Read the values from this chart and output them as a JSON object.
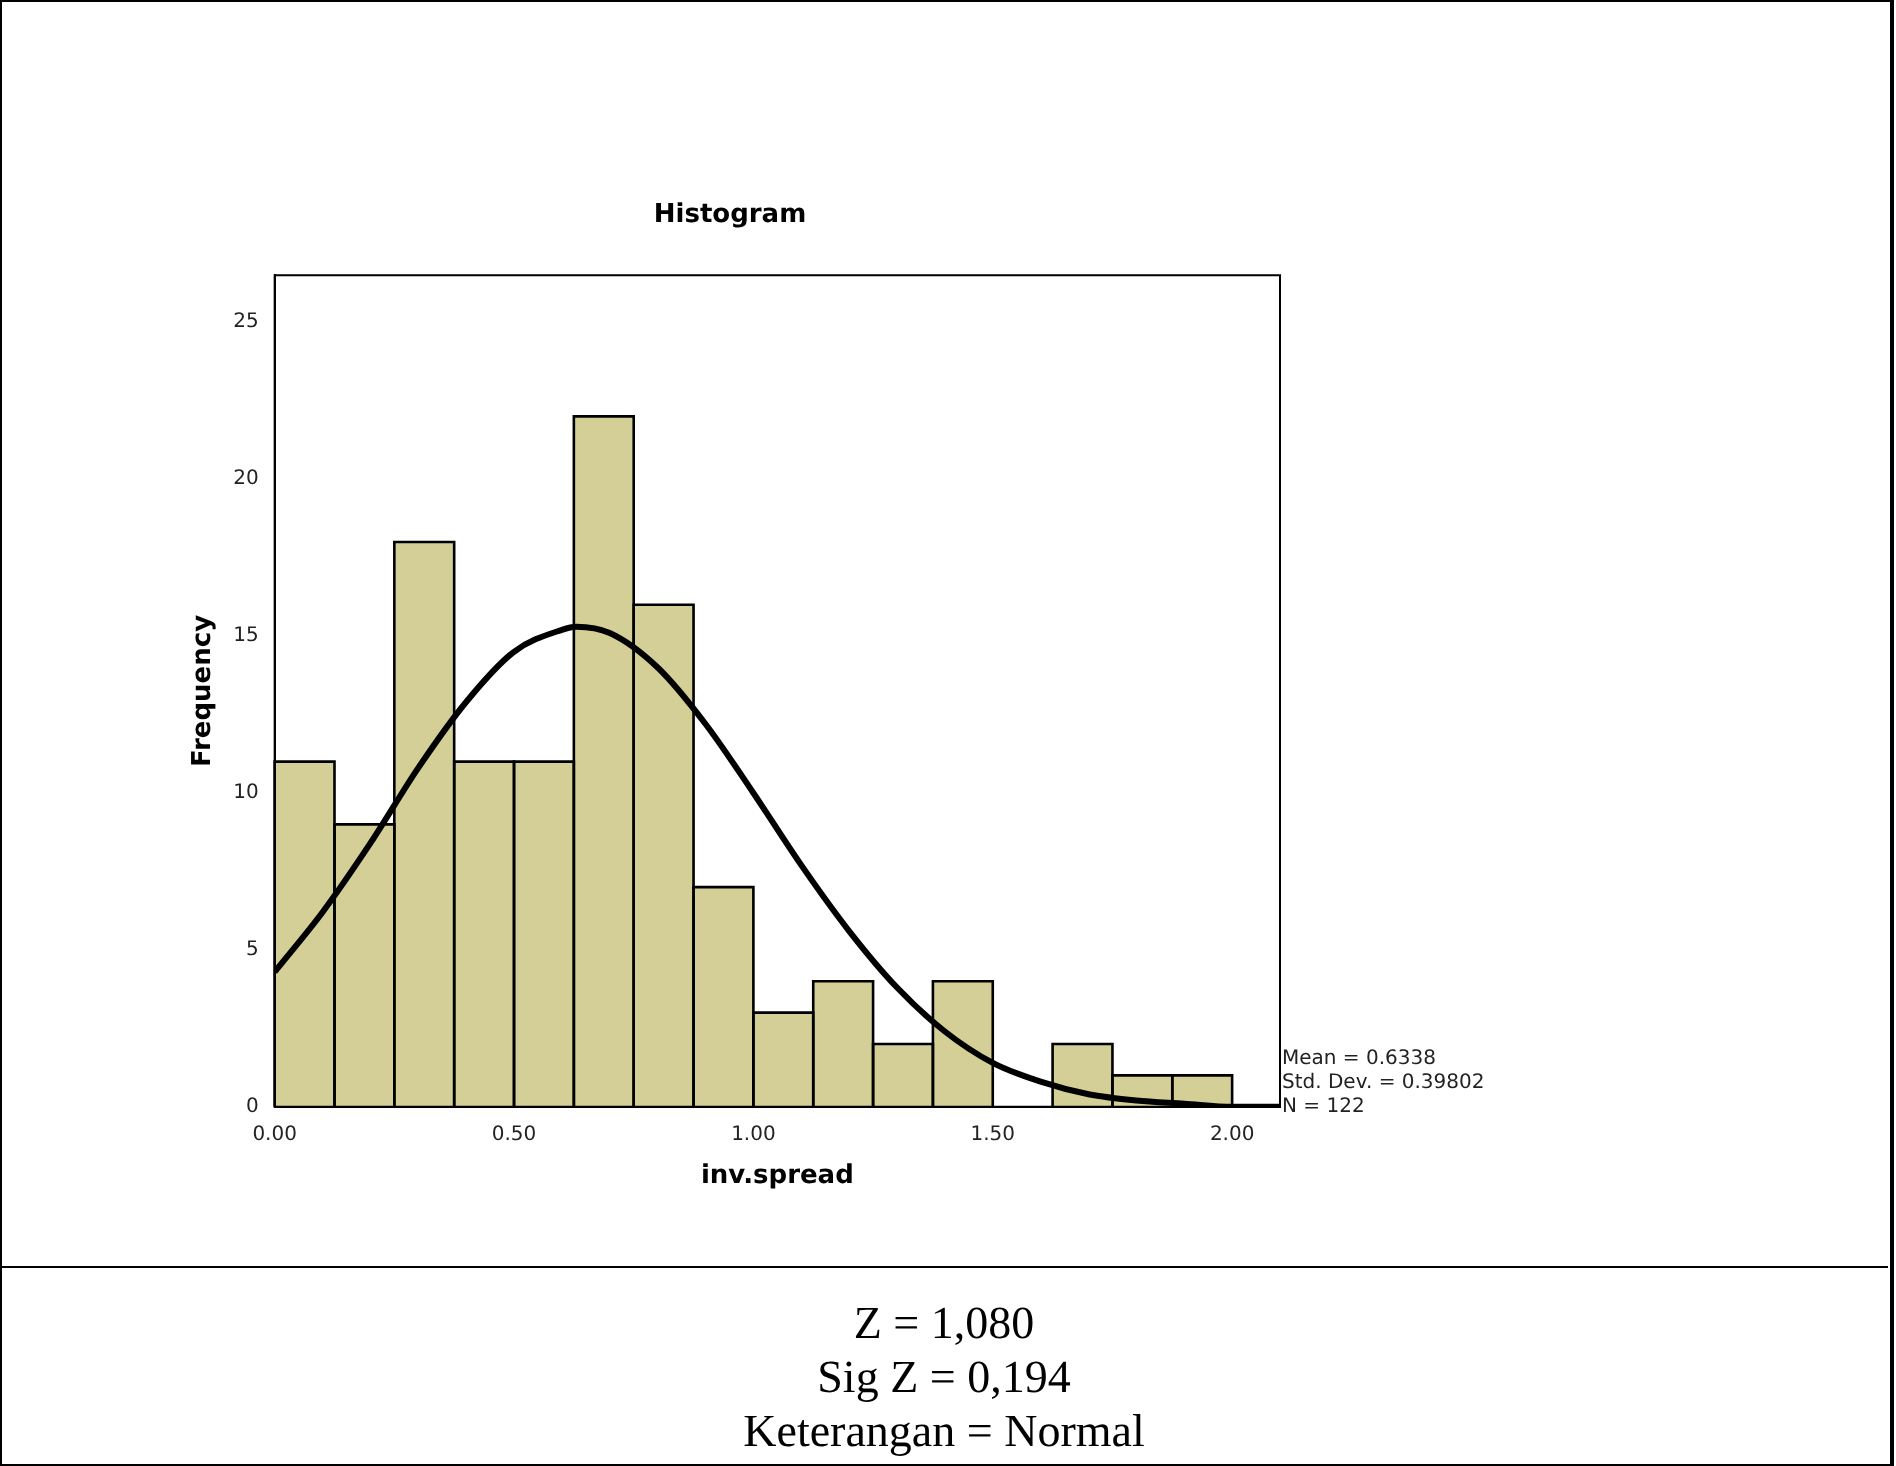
{
  "chart_data": {
    "type": "histogram",
    "title": "Histogram",
    "xlabel": "inv.spread",
    "ylabel": "Frequency",
    "bins": [
      0,
      0.125,
      0.25,
      0.375,
      0.5,
      0.625,
      0.75,
      0.875,
      1,
      1.125,
      1.25,
      1.375,
      1.5,
      1.625,
      1.75,
      1.875,
      2
    ],
    "values": [
      11,
      9,
      18,
      11,
      11,
      22,
      16,
      7,
      3,
      4,
      2,
      4,
      0,
      2,
      1,
      1
    ],
    "color": "#d3cf97",
    "series": [
      {
        "type": "line",
        "color": "#000000",
        "x": [
          0,
          0.1,
          0.2,
          0.3,
          0.4,
          0.5,
          0.6,
          0.63,
          0.7,
          0.8,
          0.9,
          1.0,
          1.1,
          1.2,
          1.3,
          1.4,
          1.5,
          1.6,
          1.7,
          1.8,
          1.9,
          2.0,
          2.1
        ],
        "values": [
          4.3,
          6.2,
          8.4,
          10.8,
          12.9,
          14.5,
          15.2,
          15.3,
          15.1,
          14.0,
          12.2,
          10.0,
          7.7,
          5.6,
          3.8,
          2.4,
          1.4,
          0.8,
          0.4,
          0.2,
          0.1,
          0.0,
          0.0
        ]
      }
    ],
    "xlim": [
      0,
      2.1
    ],
    "ylim": [
      0,
      26.5
    ],
    "xticks": [
      {
        "value": 0,
        "label": "0.00"
      },
      {
        "value": 0.5,
        "label": "0.50"
      },
      {
        "value": 1,
        "label": "1.00"
      },
      {
        "value": 1.5,
        "label": "1.50"
      },
      {
        "value": 2,
        "label": "2.00"
      }
    ],
    "yticks": [
      0,
      5,
      10,
      15,
      20,
      25
    ],
    "grid": false,
    "legend": false,
    "marker": "none",
    "line_style": "solid",
    "annotations": [
      "Mean = 0.6338",
      "Std. Dev. = 0.39802",
      "N = 122",
      "Z = 1,080",
      "Sig Z = 0,194",
      "Keterangan = Normal"
    ]
  }
}
